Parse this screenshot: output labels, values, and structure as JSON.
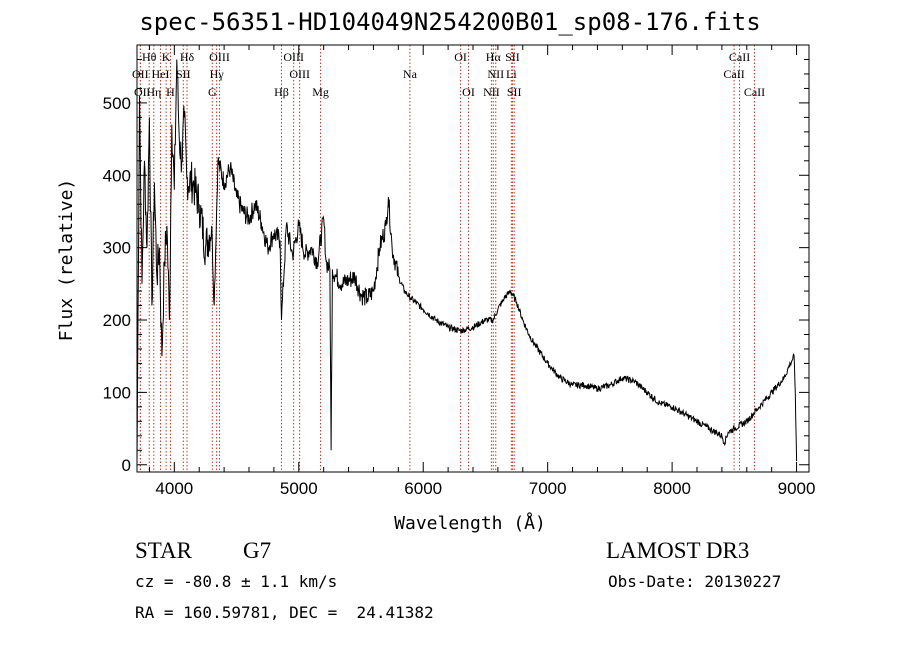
{
  "chart_data": {
    "type": "line",
    "title": "spec-56351-HD104049N254200B01_sp08-176.fits",
    "xlabel": "Wavelength (Å)",
    "ylabel": "Flux (relative)",
    "xlim": [
      3700,
      9100
    ],
    "ylim": [
      -10,
      580
    ],
    "xticks": [
      4000,
      5000,
      6000,
      7000,
      8000,
      9000
    ],
    "yticks": [
      0,
      100,
      200,
      300,
      400,
      500
    ],
    "series": [
      {
        "name": "flux",
        "x": [
          3700,
          3720,
          3740,
          3760,
          3780,
          3800,
          3820,
          3840,
          3860,
          3880,
          3900,
          3920,
          3940,
          3960,
          3980,
          4000,
          4020,
          4040,
          4060,
          4080,
          4100,
          4150,
          4200,
          4250,
          4300,
          4320,
          4350,
          4400,
          4450,
          4500,
          4550,
          4600,
          4650,
          4700,
          4750,
          4800,
          4850,
          4861,
          4900,
          4950,
          5000,
          5050,
          5100,
          5150,
          5200,
          5220,
          5250,
          5260,
          5270,
          5300,
          5350,
          5400,
          5450,
          5500,
          5550,
          5600,
          5650,
          5700,
          5720,
          5750,
          5800,
          5850,
          5900,
          6000,
          6100,
          6200,
          6300,
          6400,
          6500,
          6563,
          6600,
          6650,
          6700,
          6750,
          6800,
          6850,
          6900,
          7000,
          7100,
          7200,
          7300,
          7400,
          7500,
          7600,
          7700,
          7800,
          7900,
          8000,
          8100,
          8200,
          8300,
          8400,
          8420,
          8450,
          8500,
          8600,
          8700,
          8800,
          8900,
          8950,
          8980,
          8990,
          9000
        ],
        "y": [
          0,
          510,
          250,
          420,
          300,
          480,
          220,
          390,
          260,
          300,
          150,
          280,
          330,
          200,
          470,
          380,
          560,
          450,
          420,
          480,
          395,
          390,
          360,
          300,
          330,
          220,
          420,
          390,
          410,
          370,
          350,
          340,
          360,
          335,
          300,
          320,
          310,
          200,
          330,
          290,
          330,
          290,
          300,
          280,
          340,
          280,
          270,
          20,
          270,
          260,
          250,
          255,
          260,
          235,
          230,
          240,
          300,
          330,
          370,
          300,
          260,
          240,
          230,
          215,
          200,
          190,
          185,
          190,
          200,
          200,
          215,
          230,
          240,
          225,
          200,
          180,
          165,
          140,
          120,
          110,
          110,
          105,
          110,
          120,
          115,
          100,
          85,
          80,
          70,
          60,
          50,
          40,
          30,
          45,
          50,
          60,
          80,
          100,
          120,
          140,
          150,
          100,
          5
        ]
      }
    ],
    "lines": [
      {
        "name": "Hθ",
        "x": 3798,
        "row": 0
      },
      {
        "name": "K",
        "x": 3934,
        "row": 0
      },
      {
        "name": "Hδ",
        "x": 4102,
        "row": 0
      },
      {
        "name": "OIII",
        "x": 4363,
        "row": 0
      },
      {
        "name": "OIII",
        "x": 4959,
        "row": 0
      },
      {
        "name": "OI",
        "x": 6300,
        "row": 0
      },
      {
        "name": "Hα",
        "x": 6563,
        "row": 0
      },
      {
        "name": "SII",
        "x": 6717,
        "row": 0
      },
      {
        "name": "CaII",
        "x": 8542,
        "row": 0
      },
      {
        "name": "OII",
        "x": 3727,
        "row": 1
      },
      {
        "name": "HeI",
        "x": 3889,
        "row": 1
      },
      {
        "name": "SII",
        "x": 4072,
        "row": 1
      },
      {
        "name": "Hγ",
        "x": 4340,
        "row": 1
      },
      {
        "name": "OIII",
        "x": 5007,
        "row": 1
      },
      {
        "name": "Na",
        "x": 5893,
        "row": 1
      },
      {
        "name": "NII",
        "x": 6583,
        "row": 1
      },
      {
        "name": "Li",
        "x": 6708,
        "row": 1
      },
      {
        "name": "CaII",
        "x": 8498,
        "row": 1
      },
      {
        "name": "OI",
        "x": 3727,
        "row": 2
      },
      {
        "name": "Hη",
        "x": 3835,
        "row": 2
      },
      {
        "name": "H",
        "x": 3969,
        "row": 2
      },
      {
        "name": "G",
        "x": 4305,
        "row": 2
      },
      {
        "name": "Hβ",
        "x": 4861,
        "row": 2
      },
      {
        "name": "Mg",
        "x": 5175,
        "row": 2
      },
      {
        "name": "OI",
        "x": 6364,
        "row": 2
      },
      {
        "name": "NII",
        "x": 6548,
        "row": 2
      },
      {
        "name": "SII",
        "x": 6731,
        "row": 2
      },
      {
        "name": "CaII",
        "x": 8662,
        "row": 2
      }
    ]
  },
  "info": {
    "class_label": "STAR",
    "class_value": "G7",
    "survey": "LAMOST DR3",
    "cz": "cz = -80.8 ± 1.1 km/s",
    "obs_date": "Obs-Date: 20130227",
    "radec": "RA = 160.59781, DEC =  24.41382"
  }
}
